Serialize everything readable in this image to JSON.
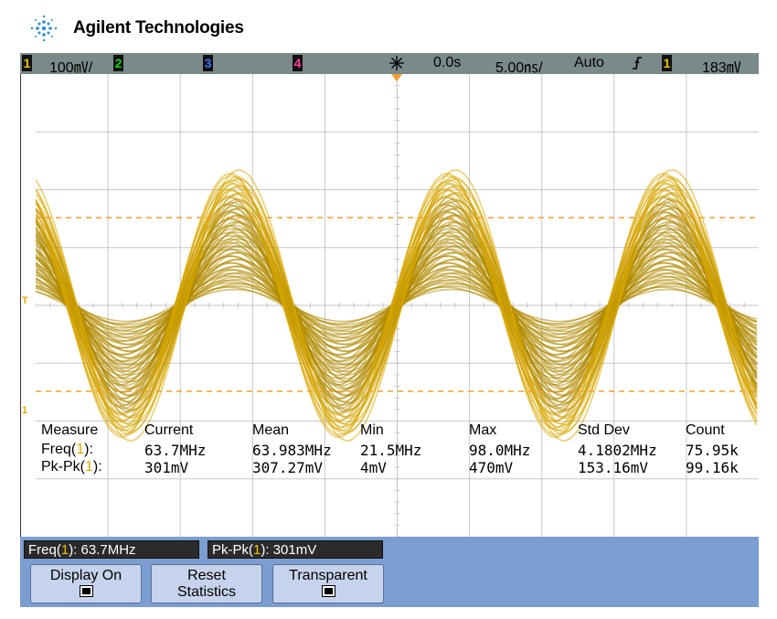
{
  "brand": {
    "name": "Agilent Technologies"
  },
  "statusbar": {
    "ch1_num": "1",
    "ch1_scale": "100㎷/",
    "ch2_num": "2",
    "ch3_num": "3",
    "ch4_num": "4",
    "time_offset": "0.0s",
    "time_scale": "5.00㎱/",
    "trigger_mode": "Auto",
    "trigger_slope_icon": "rising-edge-icon",
    "trigger_source": "1",
    "trigger_level": "183㎷"
  },
  "markers": {
    "trigger_marker": "T",
    "ground_marker": "1"
  },
  "measurements": {
    "headers": [
      "Measure",
      "Current",
      "Mean",
      "Min",
      "Max",
      "Std Dev",
      "Count"
    ],
    "rows": [
      {
        "label": "Freq(",
        "ch": "1",
        "label_end": "):",
        "current": "63.7MHz",
        "mean": "63.983MHz",
        "min": "21.5MHz",
        "max": "98.0MHz",
        "stddev": "4.1802MHz",
        "count": "75.95k"
      },
      {
        "label": "Pk-Pk(",
        "ch": "1",
        "label_end": "):",
        "current": "301mV",
        "mean": "307.27mV",
        "min": "4mV",
        "max": "470mV",
        "stddev": "153.16mV",
        "count": "99.16k"
      }
    ]
  },
  "readouts": {
    "freq_label": "Freq(",
    "freq_ch": "1",
    "freq_value": "): 63.7MHz",
    "pkpk_label": "Pk-Pk(",
    "pkpk_ch": "1",
    "pkpk_value": "): 301mV"
  },
  "softkeys": {
    "display_on": "Display On",
    "reset_line1": "Reset",
    "reset_line2": "Statistics",
    "transparent": "Transparent"
  },
  "colors": {
    "trace": "#b08a00",
    "trace_bright": "#d9a800",
    "grid": "#bdbdbd",
    "cursor": "#f0a030",
    "statusbar": "#7a8a8a",
    "softkey_panel": "#7b9dd1"
  }
}
